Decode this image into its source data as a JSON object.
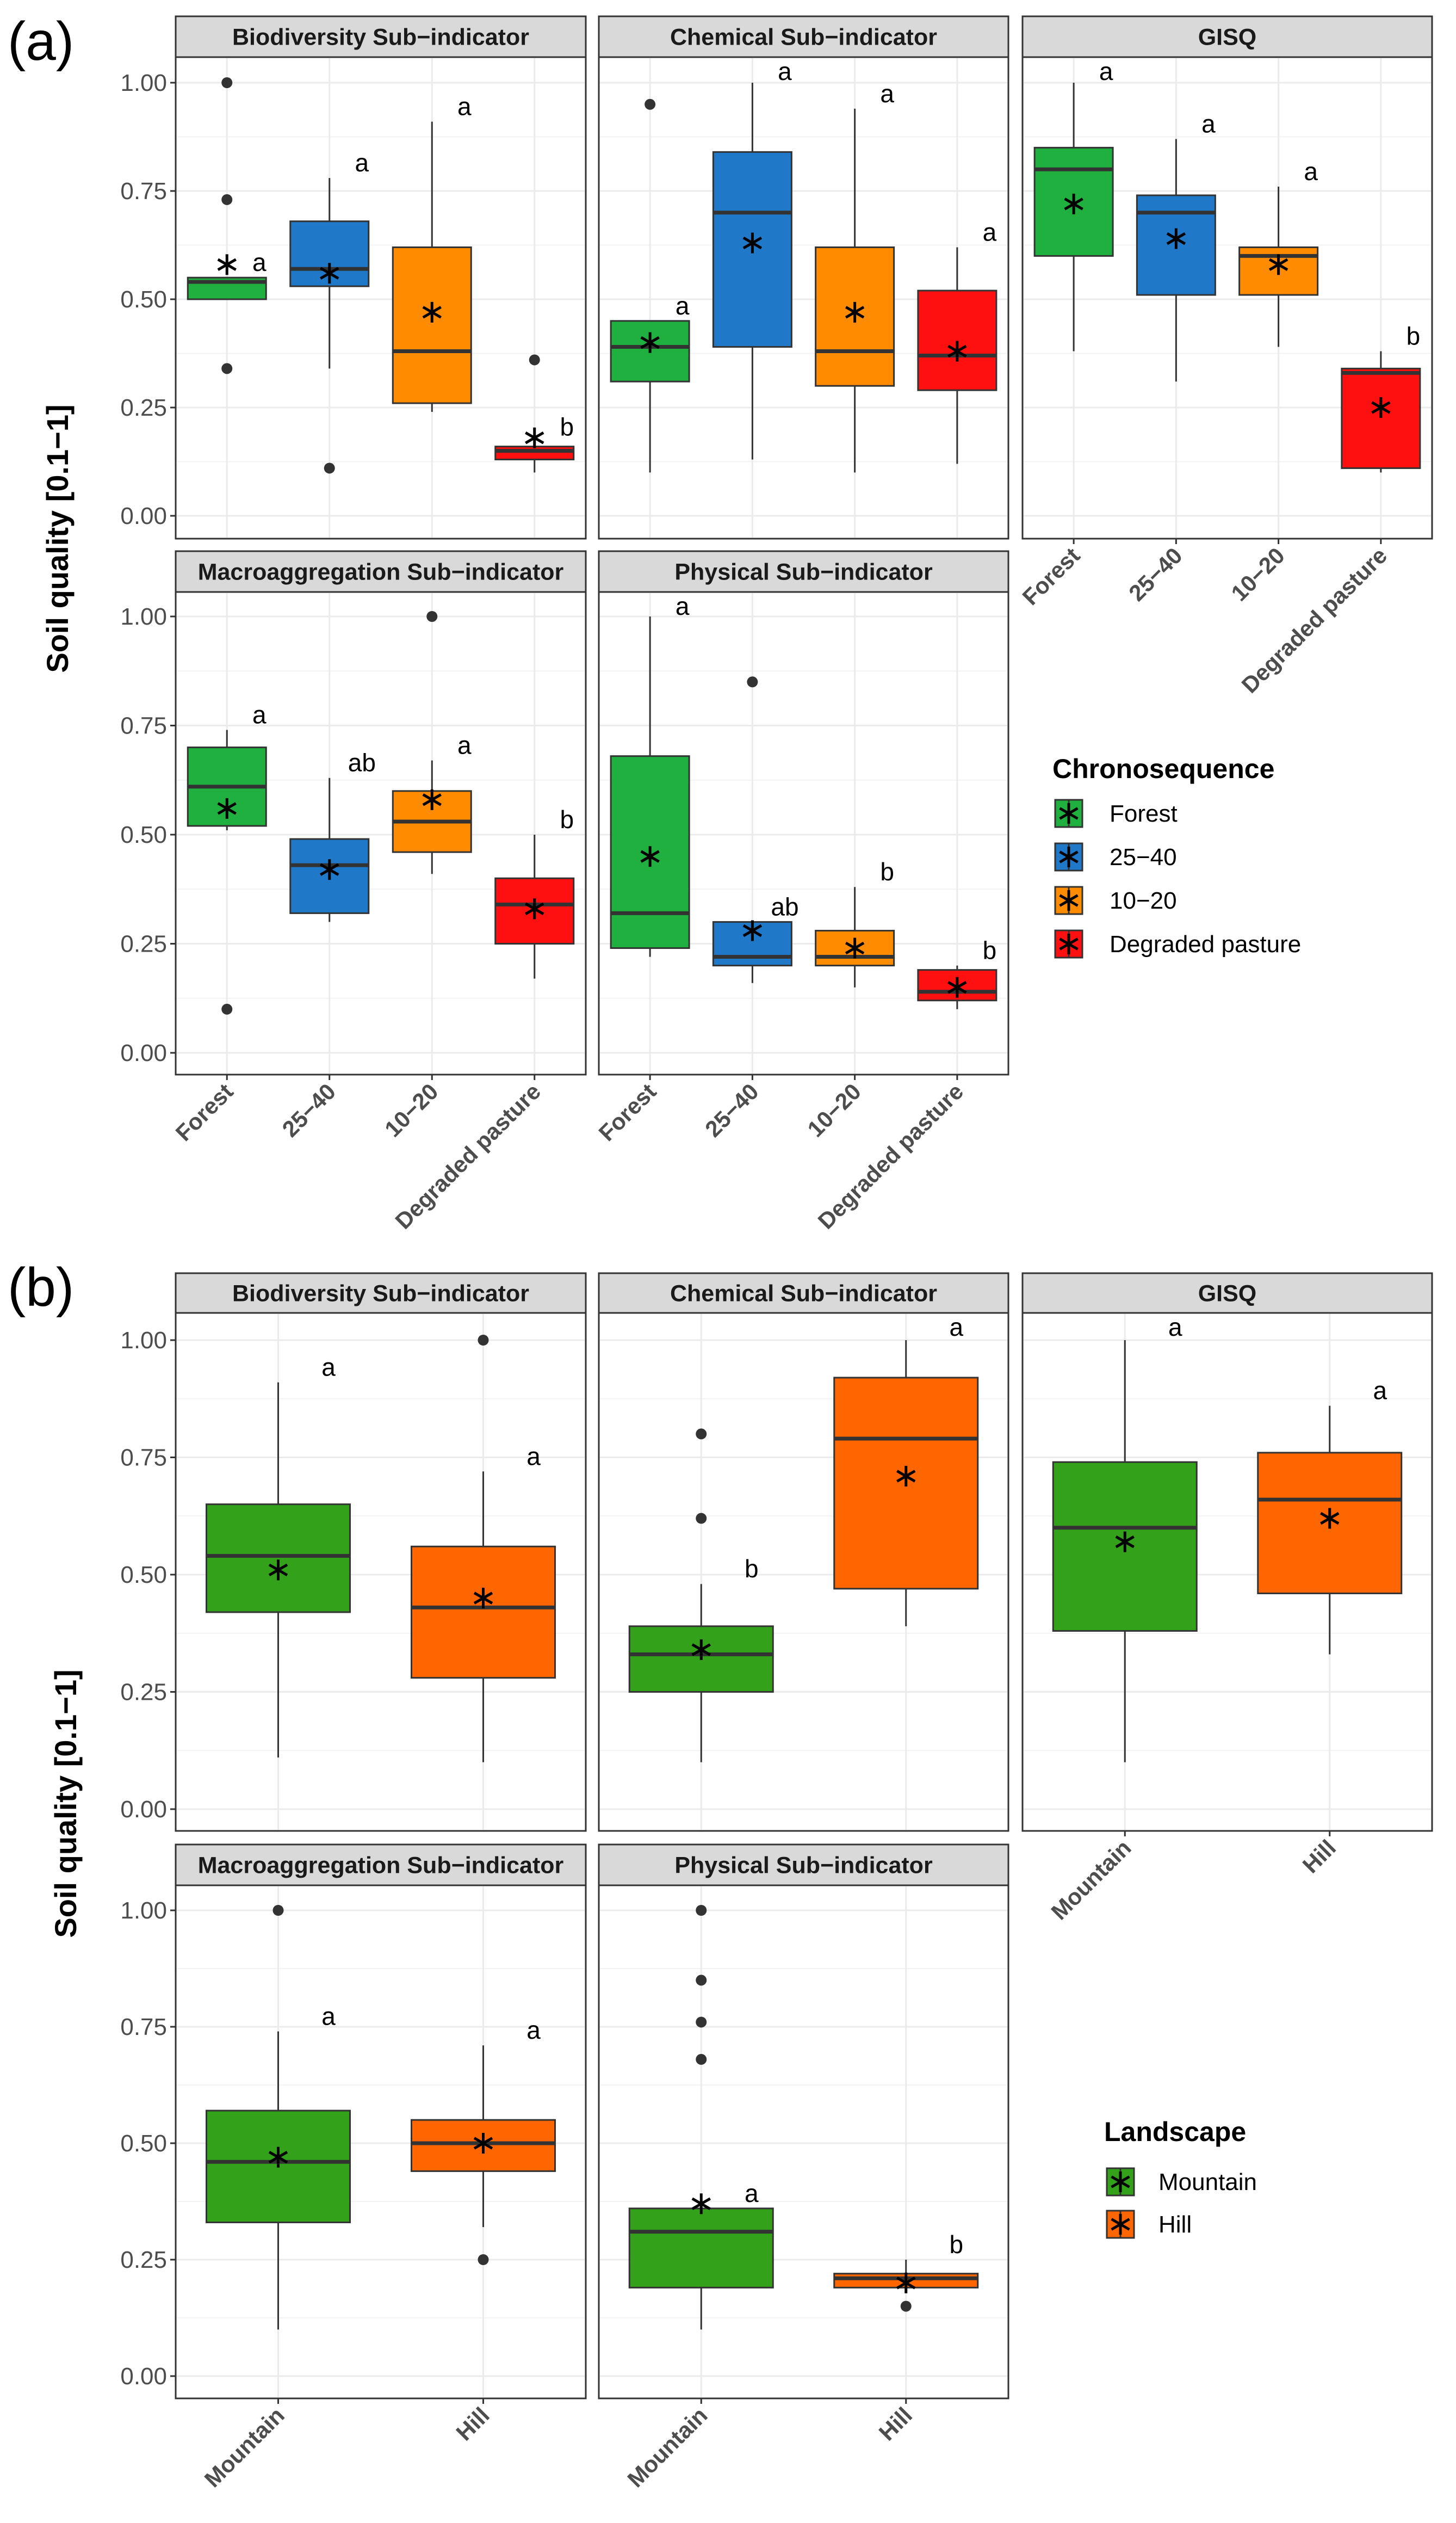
{
  "figure": {
    "y_axis_title": "Soil quality [0.1−1]",
    "y_ticks": [
      "0.00",
      "0.25",
      "0.50",
      "0.75",
      "1.00"
    ]
  },
  "colors": {
    "Forest": "#20b040",
    "25−40": "#1f78c8",
    "10−20": "#ff8c00",
    "Degraded pasture": "#ff1010",
    "Mountain": "#33a11a",
    "Hill": "#ff6600"
  },
  "chart_data": [
    {
      "type": "box",
      "panel_label": "(a)",
      "categories": [
        "Forest",
        "25−40",
        "10−20",
        "Degraded pasture"
      ],
      "ylim": [
        0,
        1
      ],
      "ylabel": "Soil quality [0.1−1]",
      "legend": {
        "title": "Chronosequence",
        "items": [
          "Forest",
          "25−40",
          "10−20",
          "Degraded pasture"
        ],
        "placement": "right"
      },
      "facets": [
        {
          "title": "Biodiversity Sub−indicator",
          "boxes": [
            {
              "category": "Forest",
              "q1": 0.5,
              "median": 0.54,
              "q3": 0.55,
              "whisker_low": 0.5,
              "whisker_high": 0.55,
              "mean": 0.58,
              "outliers": [
                1.0,
                0.73,
                0.34
              ],
              "letter": "a"
            },
            {
              "category": "25−40",
              "q1": 0.53,
              "median": 0.57,
              "q3": 0.68,
              "whisker_low": 0.34,
              "whisker_high": 0.78,
              "mean": 0.56,
              "outliers": [
                0.11
              ],
              "letter": "a"
            },
            {
              "category": "10−20",
              "q1": 0.26,
              "median": 0.38,
              "q3": 0.62,
              "whisker_low": 0.24,
              "whisker_high": 0.91,
              "mean": 0.47,
              "outliers": [],
              "letter": "a"
            },
            {
              "category": "Degraded pasture",
              "q1": 0.13,
              "median": 0.15,
              "q3": 0.16,
              "whisker_low": 0.1,
              "whisker_high": 0.17,
              "mean": 0.18,
              "outliers": [
                0.36
              ],
              "letter": "b"
            }
          ]
        },
        {
          "title": "Chemical Sub−indicator",
          "boxes": [
            {
              "category": "Forest",
              "q1": 0.31,
              "median": 0.39,
              "q3": 0.45,
              "whisker_low": 0.1,
              "whisker_high": 0.45,
              "mean": 0.4,
              "outliers": [
                0.95
              ],
              "letter": "a"
            },
            {
              "category": "25−40",
              "q1": 0.39,
              "median": 0.7,
              "q3": 0.84,
              "whisker_low": 0.13,
              "whisker_high": 1.0,
              "mean": 0.63,
              "outliers": [],
              "letter": "a"
            },
            {
              "category": "10−20",
              "q1": 0.3,
              "median": 0.38,
              "q3": 0.62,
              "whisker_low": 0.1,
              "whisker_high": 0.94,
              "mean": 0.47,
              "outliers": [],
              "letter": "a"
            },
            {
              "category": "Degraded pasture",
              "q1": 0.29,
              "median": 0.37,
              "q3": 0.52,
              "whisker_low": 0.12,
              "whisker_high": 0.62,
              "mean": 0.38,
              "outliers": [],
              "letter": "a"
            }
          ]
        },
        {
          "title": "GISQ",
          "boxes": [
            {
              "category": "Forest",
              "q1": 0.6,
              "median": 0.8,
              "q3": 0.85,
              "whisker_low": 0.38,
              "whisker_high": 1.0,
              "mean": 0.72,
              "outliers": [],
              "letter": "a"
            },
            {
              "category": "25−40",
              "q1": 0.51,
              "median": 0.7,
              "q3": 0.74,
              "whisker_low": 0.31,
              "whisker_high": 0.87,
              "mean": 0.64,
              "outliers": [],
              "letter": "a"
            },
            {
              "category": "10−20",
              "q1": 0.51,
              "median": 0.6,
              "q3": 0.62,
              "whisker_low": 0.39,
              "whisker_high": 0.76,
              "mean": 0.58,
              "outliers": [],
              "letter": "a"
            },
            {
              "category": "Degraded pasture",
              "q1": 0.11,
              "median": 0.33,
              "q3": 0.34,
              "whisker_low": 0.1,
              "whisker_high": 0.38,
              "mean": 0.25,
              "outliers": [],
              "letter": "b"
            }
          ]
        },
        {
          "title": "Macroaggregation Sub−indicator",
          "boxes": [
            {
              "category": "Forest",
              "q1": 0.52,
              "median": 0.61,
              "q3": 0.7,
              "whisker_low": 0.51,
              "whisker_high": 0.74,
              "mean": 0.56,
              "outliers": [
                0.1
              ],
              "letter": "a"
            },
            {
              "category": "25−40",
              "q1": 0.32,
              "median": 0.43,
              "q3": 0.49,
              "whisker_low": 0.3,
              "whisker_high": 0.63,
              "mean": 0.42,
              "outliers": [],
              "letter": "ab"
            },
            {
              "category": "10−20",
              "q1": 0.46,
              "median": 0.53,
              "q3": 0.6,
              "whisker_low": 0.41,
              "whisker_high": 0.67,
              "mean": 0.58,
              "outliers": [
                1.0
              ],
              "letter": "a"
            },
            {
              "category": "Degraded pasture",
              "q1": 0.25,
              "median": 0.34,
              "q3": 0.4,
              "whisker_low": 0.17,
              "whisker_high": 0.5,
              "mean": 0.33,
              "outliers": [],
              "letter": "b"
            }
          ]
        },
        {
          "title": "Physical Sub−indicator",
          "boxes": [
            {
              "category": "Forest",
              "q1": 0.24,
              "median": 0.32,
              "q3": 0.68,
              "whisker_low": 0.22,
              "whisker_high": 1.0,
              "mean": 0.45,
              "outliers": [],
              "letter": "a"
            },
            {
              "category": "25−40",
              "q1": 0.2,
              "median": 0.22,
              "q3": 0.3,
              "whisker_low": 0.16,
              "whisker_high": 0.3,
              "mean": 0.28,
              "outliers": [
                0.85
              ],
              "letter": "ab"
            },
            {
              "category": "10−20",
              "q1": 0.2,
              "median": 0.22,
              "q3": 0.28,
              "whisker_low": 0.15,
              "whisker_high": 0.38,
              "mean": 0.24,
              "outliers": [],
              "letter": "b"
            },
            {
              "category": "Degraded pasture",
              "q1": 0.12,
              "median": 0.14,
              "q3": 0.19,
              "whisker_low": 0.1,
              "whisker_high": 0.2,
              "mean": 0.15,
              "outliers": [],
              "letter": "b"
            }
          ]
        }
      ]
    },
    {
      "type": "box",
      "panel_label": "(b)",
      "categories": [
        "Mountain",
        "Hill"
      ],
      "ylim": [
        0,
        1
      ],
      "ylabel": "Soil quality [0.1−1]",
      "legend": {
        "title": "Landscape",
        "items": [
          "Mountain",
          "Hill"
        ],
        "placement": "right"
      },
      "facets": [
        {
          "title": "Biodiversity Sub−indicator",
          "boxes": [
            {
              "category": "Mountain",
              "q1": 0.42,
              "median": 0.54,
              "q3": 0.65,
              "whisker_low": 0.11,
              "whisker_high": 0.91,
              "mean": 0.51,
              "outliers": [],
              "letter": "a"
            },
            {
              "category": "Hill",
              "q1": 0.28,
              "median": 0.43,
              "q3": 0.56,
              "whisker_low": 0.1,
              "whisker_high": 0.72,
              "mean": 0.45,
              "outliers": [
                1.0
              ],
              "letter": "a"
            }
          ]
        },
        {
          "title": "Chemical Sub−indicator",
          "boxes": [
            {
              "category": "Mountain",
              "q1": 0.25,
              "median": 0.33,
              "q3": 0.39,
              "whisker_low": 0.1,
              "whisker_high": 0.48,
              "mean": 0.34,
              "outliers": [
                0.8,
                0.62
              ],
              "letter": "b"
            },
            {
              "category": "Hill",
              "q1": 0.47,
              "median": 0.79,
              "q3": 0.92,
              "whisker_low": 0.39,
              "whisker_high": 1.0,
              "mean": 0.71,
              "outliers": [],
              "letter": "a"
            }
          ]
        },
        {
          "title": "GISQ",
          "boxes": [
            {
              "category": "Mountain",
              "q1": 0.38,
              "median": 0.6,
              "q3": 0.74,
              "whisker_low": 0.1,
              "whisker_high": 1.0,
              "mean": 0.57,
              "outliers": [],
              "letter": "a"
            },
            {
              "category": "Hill",
              "q1": 0.46,
              "median": 0.66,
              "q3": 0.76,
              "whisker_low": 0.33,
              "whisker_high": 0.86,
              "mean": 0.62,
              "outliers": [],
              "letter": "a"
            }
          ]
        },
        {
          "title": "Macroaggregation Sub−indicator",
          "boxes": [
            {
              "category": "Mountain",
              "q1": 0.33,
              "median": 0.46,
              "q3": 0.57,
              "whisker_low": 0.1,
              "whisker_high": 0.74,
              "mean": 0.47,
              "outliers": [
                1.0
              ],
              "letter": "a"
            },
            {
              "category": "Hill",
              "q1": 0.44,
              "median": 0.5,
              "q3": 0.55,
              "whisker_low": 0.32,
              "whisker_high": 0.71,
              "mean": 0.5,
              "outliers": [
                0.25
              ],
              "letter": "a"
            }
          ]
        },
        {
          "title": "Physical Sub−indicator",
          "boxes": [
            {
              "category": "Mountain",
              "q1": 0.19,
              "median": 0.31,
              "q3": 0.36,
              "whisker_low": 0.1,
              "whisker_high": 0.36,
              "mean": 0.37,
              "outliers": [
                1.0,
                0.85,
                0.76,
                0.68
              ],
              "letter": "a"
            },
            {
              "category": "Hill",
              "q1": 0.19,
              "median": 0.21,
              "q3": 0.22,
              "whisker_low": 0.19,
              "whisker_high": 0.25,
              "mean": 0.2,
              "outliers": [
                0.15
              ],
              "letter": "b"
            }
          ]
        }
      ]
    }
  ]
}
